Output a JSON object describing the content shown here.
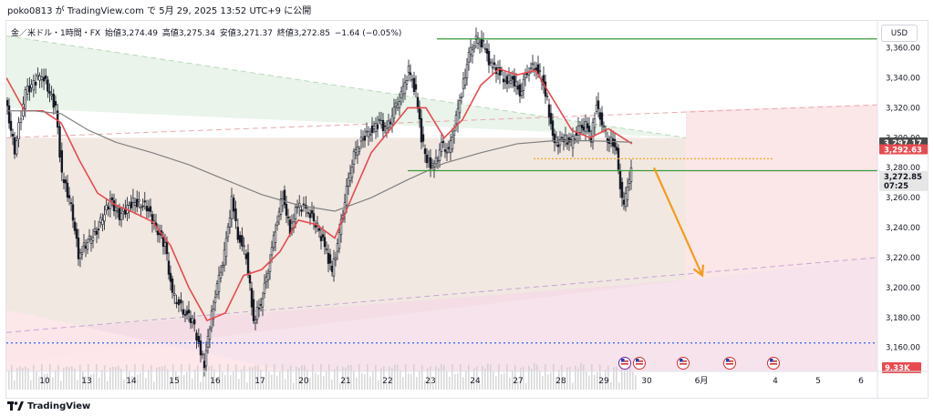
{
  "header": {
    "attribution": "poko0813 が TradingView.com で 5月 29, 2025 13:52 UTC+9 に公開"
  },
  "legend": {
    "symbol": "金／米ドル・1時間・FX",
    "open": "始値3,274.49",
    "high": "高値3,275.34",
    "low": "安値3,271.37",
    "close": "終値3,272.85",
    "change": "−1.64 (−0.05%)"
  },
  "currency_button": "USD",
  "footer": {
    "brand": "TradingView"
  },
  "chart_data": {
    "type": "candlestick",
    "instrument": "金／米ドル・1時間・FX",
    "ylim": [
      3144,
      3378
    ],
    "y_ticks": [
      3160,
      3180,
      3200,
      3220,
      3240,
      3260,
      3280,
      3300,
      3320,
      3340,
      3360
    ],
    "y_tick_labels": [
      "3,160.00",
      "3,180.00",
      "3,200.00",
      "3,220.00",
      "3,240.00",
      "3,260.00",
      "3,280.00",
      "3,300.00",
      "3,320.00",
      "3,340.00",
      "3,360.00"
    ],
    "x_ticks": [
      "10",
      "13",
      "14",
      "15",
      "16",
      "17",
      "20",
      "21",
      "22",
      "23",
      "24",
      "27",
      "28",
      "29",
      "30",
      "6月",
      "4",
      "5",
      "6"
    ],
    "price_path": [
      [
        0,
        3325
      ],
      [
        10,
        3292
      ],
      [
        22,
        3330
      ],
      [
        40,
        3343
      ],
      [
        55,
        3320
      ],
      [
        62,
        3275
      ],
      [
        72,
        3255
      ],
      [
        80,
        3222
      ],
      [
        90,
        3230
      ],
      [
        100,
        3238
      ],
      [
        115,
        3258
      ],
      [
        125,
        3248
      ],
      [
        140,
        3257
      ],
      [
        155,
        3254
      ],
      [
        165,
        3240
      ],
      [
        175,
        3228
      ],
      [
        183,
        3195
      ],
      [
        195,
        3185
      ],
      [
        205,
        3178
      ],
      [
        212,
        3162
      ],
      [
        218,
        3148
      ],
      [
        224,
        3175
      ],
      [
        232,
        3200
      ],
      [
        240,
        3222
      ],
      [
        248,
        3258
      ],
      [
        255,
        3235
      ],
      [
        264,
        3222
      ],
      [
        272,
        3178
      ],
      [
        280,
        3190
      ],
      [
        288,
        3212
      ],
      [
        296,
        3240
      ],
      [
        304,
        3262
      ],
      [
        312,
        3238
      ],
      [
        320,
        3255
      ],
      [
        332,
        3252
      ],
      [
        342,
        3240
      ],
      [
        350,
        3228
      ],
      [
        358,
        3210
      ],
      [
        366,
        3235
      ],
      [
        374,
        3265
      ],
      [
        382,
        3288
      ],
      [
        392,
        3300
      ],
      [
        400,
        3305
      ],
      [
        410,
        3310
      ],
      [
        418,
        3305
      ],
      [
        426,
        3318
      ],
      [
        434,
        3328
      ],
      [
        442,
        3345
      ],
      [
        450,
        3330
      ],
      [
        456,
        3300
      ],
      [
        462,
        3285
      ],
      [
        470,
        3280
      ],
      [
        478,
        3295
      ],
      [
        486,
        3290
      ],
      [
        494,
        3312
      ],
      [
        500,
        3330
      ],
      [
        508,
        3355
      ],
      [
        516,
        3365
      ],
      [
        524,
        3362
      ],
      [
        532,
        3348
      ],
      [
        540,
        3345
      ],
      [
        548,
        3338
      ],
      [
        556,
        3340
      ],
      [
        564,
        3330
      ],
      [
        572,
        3345
      ],
      [
        580,
        3348
      ],
      [
        588,
        3340
      ],
      [
        594,
        3325
      ],
      [
        600,
        3300
      ],
      [
        606,
        3296
      ],
      [
        612,
        3300
      ],
      [
        620,
        3296
      ],
      [
        628,
        3305
      ],
      [
        636,
        3308
      ],
      [
        642,
        3300
      ],
      [
        648,
        3322
      ],
      [
        652,
        3315
      ],
      [
        656,
        3305
      ],
      [
        660,
        3300
      ],
      [
        666,
        3296
      ],
      [
        670,
        3290
      ],
      [
        674,
        3268
      ],
      [
        678,
        3253
      ],
      [
        682,
        3270
      ],
      [
        686,
        3277
      ]
    ],
    "series": [
      {
        "name": "",
        "kind": "moving-average",
        "color": "#e84a4f",
        "points": [
          [
            0,
            3340
          ],
          [
            20,
            3318
          ],
          [
            40,
            3318
          ],
          [
            60,
            3310
          ],
          [
            80,
            3285
          ],
          [
            100,
            3263
          ],
          [
            120,
            3255
          ],
          [
            140,
            3250
          ],
          [
            160,
            3244
          ],
          [
            180,
            3228
          ],
          [
            200,
            3200
          ],
          [
            220,
            3178
          ],
          [
            240,
            3183
          ],
          [
            260,
            3208
          ],
          [
            280,
            3212
          ],
          [
            300,
            3224
          ],
          [
            320,
            3245
          ],
          [
            340,
            3242
          ],
          [
            360,
            3233
          ],
          [
            380,
            3262
          ],
          [
            400,
            3290
          ],
          [
            420,
            3305
          ],
          [
            440,
            3320
          ],
          [
            460,
            3320
          ],
          [
            480,
            3300
          ],
          [
            500,
            3312
          ],
          [
            520,
            3335
          ],
          [
            540,
            3346
          ],
          [
            560,
            3342
          ],
          [
            580,
            3345
          ],
          [
            600,
            3325
          ],
          [
            620,
            3305
          ],
          [
            640,
            3300
          ],
          [
            660,
            3306
          ],
          [
            686,
            3296
          ]
        ]
      },
      {
        "name": "",
        "kind": "moving-average",
        "color": "#808080",
        "points": [
          [
            0,
            3318
          ],
          [
            30,
            3318
          ],
          [
            60,
            3316
          ],
          [
            90,
            3305
          ],
          [
            120,
            3297
          ],
          [
            160,
            3290
          ],
          [
            200,
            3282
          ],
          [
            240,
            3272
          ],
          [
            280,
            3262
          ],
          [
            320,
            3255
          ],
          [
            360,
            3251
          ],
          [
            400,
            3260
          ],
          [
            440,
            3272
          ],
          [
            480,
            3283
          ],
          [
            520,
            3290
          ],
          [
            560,
            3296
          ],
          [
            600,
            3298
          ],
          [
            640,
            3298
          ],
          [
            686,
            3297
          ]
        ]
      }
    ],
    "volume_peak_label": "9.33K",
    "annotations": {
      "price_labels": [
        "3,297.17",
        "3,292.63",
        "3,272.85",
        "07:25"
      ],
      "levels": [
        3366,
        3278,
        3286,
        3163
      ],
      "arrow_from": [
        710,
        3280
      ],
      "arrow_to": [
        763,
        3208
      ]
    }
  }
}
